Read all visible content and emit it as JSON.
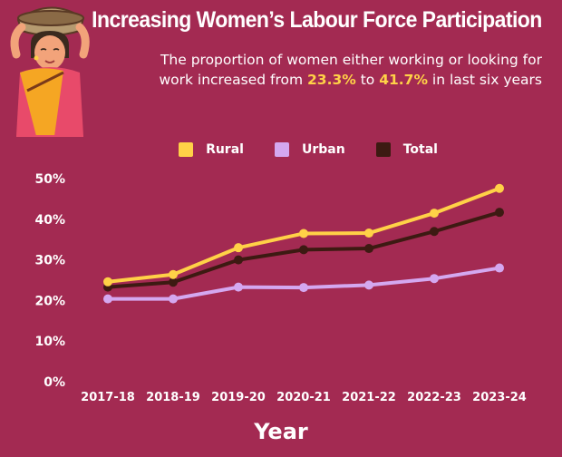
{
  "header": {
    "title": "Increasing Women’s Labour Force Participation",
    "subtitle_part1": "The proportion of women either working or looking for work increased from ",
    "subtitle_hl1": "23.3%",
    "subtitle_part2": " to ",
    "subtitle_hl2": "41.7%",
    "subtitle_part3": " in last six years"
  },
  "colors": {
    "background": "#a32a52",
    "rural": "#ffd147",
    "urban": "#d4a8f0",
    "total": "#3d1a12",
    "highlight": "#ffd147"
  },
  "chart_data": {
    "type": "line",
    "title": "",
    "xlabel": "Year",
    "ylabel": "",
    "categories": [
      "2017-18",
      "2018-19",
      "2019-20",
      "2020-21",
      "2021-22",
      "2022-23",
      "2023-24"
    ],
    "ylim": [
      0,
      50
    ],
    "yticks": [
      "0%",
      "10%",
      "20%",
      "30%",
      "40%",
      "50%"
    ],
    "grid": false,
    "legend_position": "top",
    "series": [
      {
        "name": "Rural",
        "color": "#ffd147",
        "values": [
          24.6,
          26.4,
          33.0,
          36.5,
          36.6,
          41.5,
          47.6
        ]
      },
      {
        "name": "Urban",
        "color": "#d4a8f0",
        "values": [
          20.4,
          20.4,
          23.3,
          23.2,
          23.8,
          25.4,
          28.0
        ]
      },
      {
        "name": "Total",
        "color": "#3d1a12",
        "values": [
          23.3,
          24.5,
          30.0,
          32.5,
          32.8,
          37.0,
          41.7
        ]
      }
    ]
  }
}
